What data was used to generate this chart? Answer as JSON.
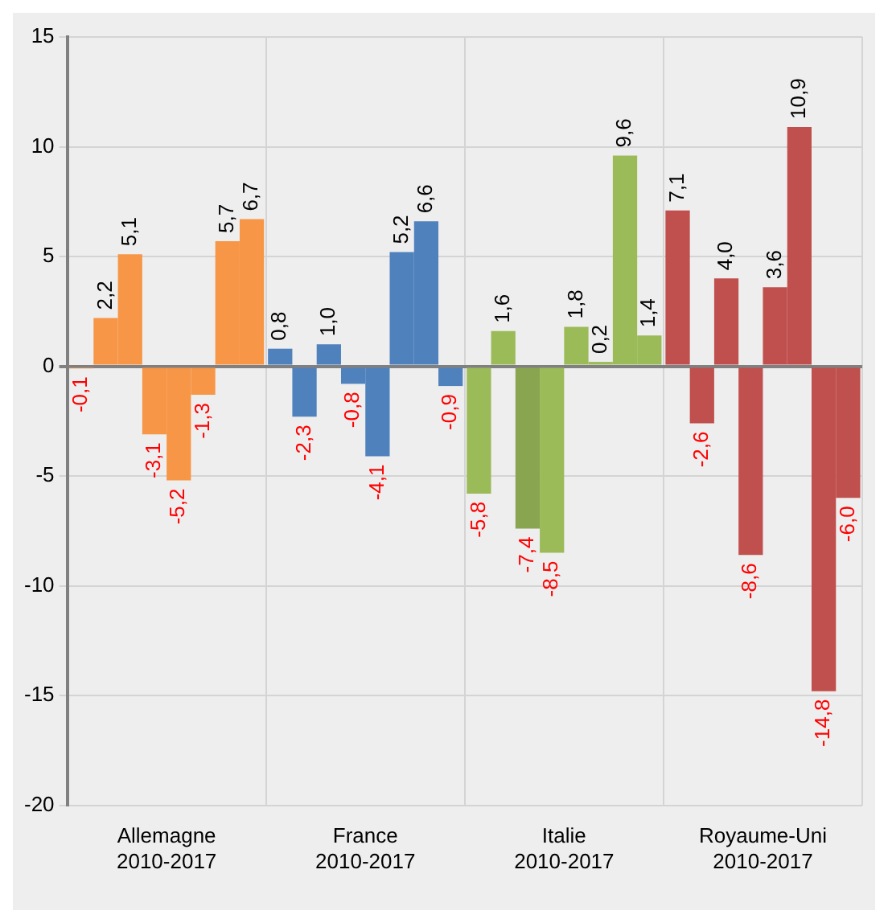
{
  "chart_data": {
    "type": "bar",
    "categories": [
      "Allemagne\n2010-2017",
      "France\n2010-2017",
      "Italie\n2010-2017",
      "Royaume-Uni\n2010-2017"
    ],
    "series": [
      {
        "colors": [
          "#f79646",
          "#4f81bd",
          "#9bbb59",
          "#c0504d"
        ],
        "values": [
          -0.1,
          0.8,
          -5.8,
          7.1
        ],
        "value_labels": [
          "-0,1",
          "0,8",
          "-5,8",
          "7,1"
        ]
      },
      {
        "colors": [
          "#f79646",
          "#4f81bd",
          "#9bbb59",
          "#c0504d"
        ],
        "values": [
          2.2,
          -2.3,
          1.6,
          -2.6
        ],
        "value_labels": [
          "2,2",
          "-2,3",
          "1,6",
          "-2,6"
        ]
      },
      {
        "colors": [
          "#f79646",
          "#4f81bd",
          "#8aa550",
          "#c0504d"
        ],
        "values": [
          5.1,
          1.0,
          -7.4,
          4.0
        ],
        "value_labels": [
          "5,1",
          "1,0",
          "-7,4",
          "4,0"
        ]
      },
      {
        "colors": [
          "#f79646",
          "#4f81bd",
          "#9bbb59",
          "#c0504d"
        ],
        "values": [
          -3.1,
          -0.8,
          -8.5,
          -8.6
        ],
        "value_labels": [
          "-3,1",
          "-0,8",
          "-8,5",
          "-8,6"
        ]
      },
      {
        "colors": [
          "#f79646",
          "#4f81bd",
          "#9bbb59",
          "#c0504d"
        ],
        "values": [
          -5.2,
          -4.1,
          1.8,
          3.6
        ],
        "value_labels": [
          "-5,2",
          "-4,1",
          "1,8",
          "3,6"
        ]
      },
      {
        "colors": [
          "#f79646",
          "#4f81bd",
          "#9bbb59",
          "#c0504d"
        ],
        "values": [
          -1.3,
          5.2,
          0.2,
          10.9
        ],
        "value_labels": [
          "-1,3",
          "5,2",
          "0,2",
          "10,9"
        ]
      },
      {
        "colors": [
          "#f79646",
          "#4f81bd",
          "#9bbb59",
          "#c0504d"
        ],
        "values": [
          5.7,
          6.6,
          9.6,
          -14.8
        ],
        "value_labels": [
          "5,7",
          "6,6",
          "9,6",
          "-14,8"
        ]
      },
      {
        "colors": [
          "#f79646",
          "#4f81bd",
          "#9bbb59",
          "#c0504d"
        ],
        "values": [
          6.7,
          -0.9,
          1.4,
          -6.0
        ],
        "value_labels": [
          "6,7",
          "-0,9",
          "1,4",
          "-6,0"
        ]
      }
    ],
    "ylim": [
      -20,
      15
    ],
    "yticks": [
      -20,
      -15,
      -10,
      -5,
      0,
      5,
      10,
      15
    ],
    "grid": true,
    "legend": false
  }
}
